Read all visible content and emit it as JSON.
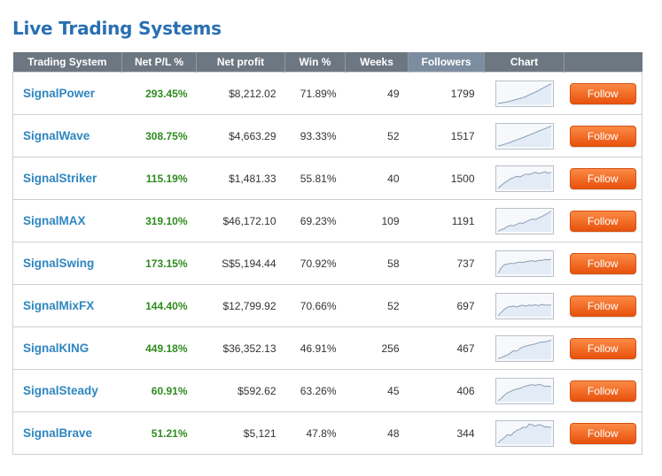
{
  "page": {
    "title": "Live Trading Systems"
  },
  "table": {
    "headers": [
      "Trading System",
      "Net P/L %",
      "Net profit",
      "Win %",
      "Weeks",
      "Followers",
      "Chart",
      ""
    ],
    "follow_label": "Follow",
    "rows": [
      {
        "name": "SignalPower",
        "pl": "293.45%",
        "profit": "$8,212.02",
        "win": "71.89%",
        "weeks": "49",
        "followers": "1799",
        "spark": [
          5,
          7,
          10,
          12,
          16,
          20,
          24,
          28,
          32,
          38,
          45,
          52,
          58,
          66,
          74,
          82,
          90,
          97
        ]
      },
      {
        "name": "SignalWave",
        "pl": "308.75%",
        "profit": "$4,663.29",
        "win": "93.33%",
        "weeks": "52",
        "followers": "1517",
        "spark": [
          4,
          8,
          12,
          17,
          22,
          28,
          33,
          38,
          44,
          50,
          56,
          62,
          68,
          74,
          80,
          86,
          92,
          98
        ]
      },
      {
        "name": "SignalStriker",
        "pl": "115.19%",
        "profit": "$1,481.33",
        "win": "55.81%",
        "weeks": "40",
        "followers": "1500",
        "spark": [
          5,
          18,
          30,
          40,
          50,
          55,
          62,
          58,
          66,
          72,
          70,
          76,
          80,
          74,
          78,
          82,
          76,
          80
        ]
      },
      {
        "name": "SignalMAX",
        "pl": "319.10%",
        "profit": "$46,172.10",
        "win": "69.23%",
        "weeks": "109",
        "followers": "1191",
        "spark": [
          3,
          10,
          15,
          25,
          30,
          28,
          35,
          42,
          40,
          48,
          55,
          60,
          58,
          66,
          72,
          80,
          88,
          98
        ]
      },
      {
        "name": "SignalSwing",
        "pl": "173.15%",
        "profit": "S$5,194.44",
        "win": "70.92%",
        "weeks": "58",
        "followers": "737",
        "spark": [
          5,
          30,
          45,
          48,
          52,
          50,
          55,
          58,
          56,
          60,
          62,
          64,
          60,
          66,
          65,
          70,
          68,
          72
        ]
      },
      {
        "name": "SignalMixFX",
        "pl": "144.40%",
        "profit": "$12,799.92",
        "win": "70.66%",
        "weeks": "52",
        "followers": "697",
        "spark": [
          5,
          20,
          35,
          45,
          48,
          50,
          46,
          52,
          54,
          50,
          55,
          53,
          56,
          52,
          58,
          55,
          54,
          56
        ]
      },
      {
        "name": "SignalKING",
        "pl": "449.18%",
        "profit": "$36,352.13",
        "win": "46.91%",
        "weeks": "256",
        "followers": "467",
        "spark": [
          2,
          8,
          14,
          20,
          30,
          40,
          38,
          50,
          58,
          62,
          66,
          70,
          72,
          78,
          80,
          82,
          85,
          90
        ]
      },
      {
        "name": "SignalSteady",
        "pl": "60.91%",
        "profit": "$592.62",
        "win": "63.26%",
        "weeks": "45",
        "followers": "406",
        "spark": [
          5,
          15,
          30,
          42,
          48,
          55,
          60,
          62,
          70,
          74,
          78,
          80,
          76,
          82,
          78,
          72,
          74,
          70
        ]
      },
      {
        "name": "SignalBrave",
        "pl": "51.21%",
        "profit": "$5,121",
        "win": "47.8%",
        "weeks": "48",
        "followers": "344",
        "spark": [
          5,
          20,
          30,
          45,
          40,
          55,
          65,
          70,
          80,
          78,
          95,
          90,
          85,
          92,
          88,
          80,
          82,
          78
        ]
      }
    ]
  },
  "colors": {
    "header_bg": "#6d7782",
    "header_sorted_bg": "#7c8da0",
    "name_link": "#2f86c0",
    "pl_green": "#2e8b1e",
    "button": "#f26b21",
    "spark_line": "#8a9fb5",
    "spark_fill": "#e3ecf6"
  }
}
